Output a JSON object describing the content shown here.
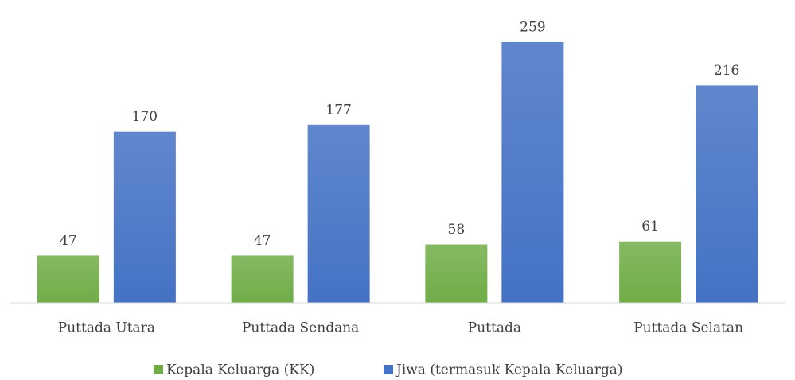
{
  "chart_data": {
    "type": "bar",
    "categories": [
      "Puttada Utara",
      "Puttada Sendana",
      "Puttada",
      "Puttada Selatan"
    ],
    "series": [
      {
        "name": "Kepala Keluarga (KK)",
        "color": "#70ad47",
        "values": [
          47,
          47,
          58,
          61
        ]
      },
      {
        "name": "Jiwa (termasuk Kepala Keluarga)",
        "color": "#4472c4",
        "values": [
          170,
          177,
          259,
          216
        ]
      }
    ],
    "ylim": [
      0,
      300
    ],
    "legend": "bottom"
  }
}
